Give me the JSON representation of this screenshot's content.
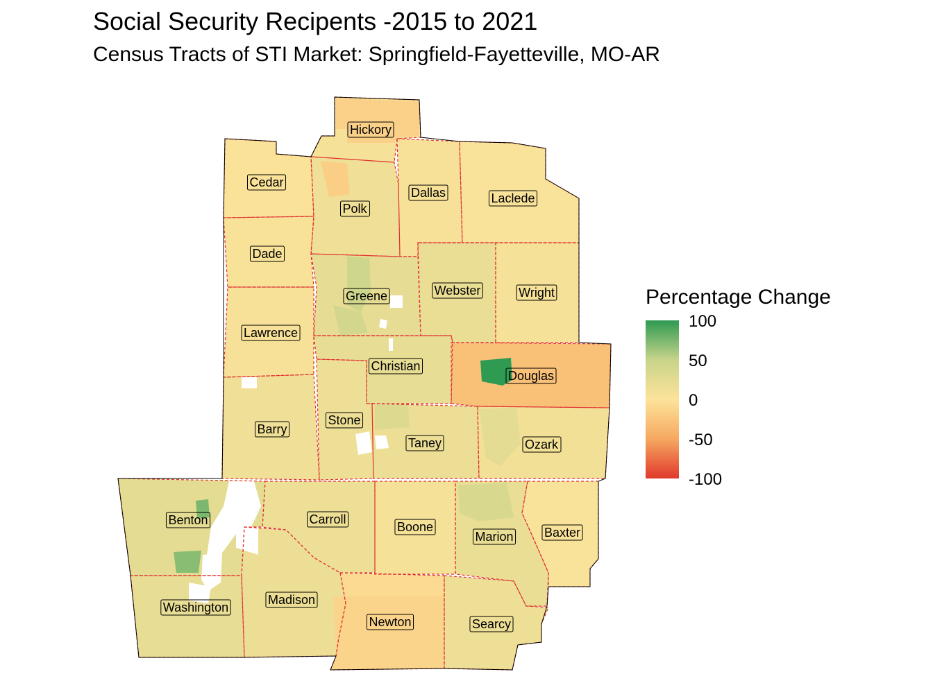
{
  "title": "Social Security Recipents -2015 to 2021",
  "subtitle": "Census Tracts of STI Market: Springfield-Fayetteville, MO-AR",
  "legend": {
    "title": "Percentage Change",
    "ticks": [
      "100",
      "50",
      "0",
      "-50",
      "-100"
    ],
    "colors": {
      "high": "#2e9a52",
      "mid_high": "#c8d48a",
      "mid": "#fde39a",
      "mid_low": "#f6a861",
      "low": "#e0392b"
    }
  },
  "counties": [
    {
      "name": "Hickory",
      "value": 8
    },
    {
      "name": "Cedar",
      "value": 3
    },
    {
      "name": "Polk",
      "value": 12
    },
    {
      "name": "Dallas",
      "value": 6
    },
    {
      "name": "Laclede",
      "value": 4
    },
    {
      "name": "Dade",
      "value": 5
    },
    {
      "name": "Greene",
      "value": 22
    },
    {
      "name": "Webster",
      "value": 18
    },
    {
      "name": "Wright",
      "value": 8
    },
    {
      "name": "Lawrence",
      "value": 6
    },
    {
      "name": "Christian",
      "value": 20
    },
    {
      "name": "Douglas",
      "value": -30
    },
    {
      "name": "Barry",
      "value": 12
    },
    {
      "name": "Stone",
      "value": 14
    },
    {
      "name": "Taney",
      "value": 16
    },
    {
      "name": "Ozark",
      "value": 10
    },
    {
      "name": "Benton",
      "value": 24
    },
    {
      "name": "Carroll",
      "value": 14
    },
    {
      "name": "Boone",
      "value": 8
    },
    {
      "name": "Marion",
      "value": 18
    },
    {
      "name": "Baxter",
      "value": 4
    },
    {
      "name": "Washington",
      "value": 20
    },
    {
      "name": "Madison",
      "value": 16
    },
    {
      "name": "Newton",
      "value": -8
    },
    {
      "name": "Searcy",
      "value": 14
    }
  ]
}
